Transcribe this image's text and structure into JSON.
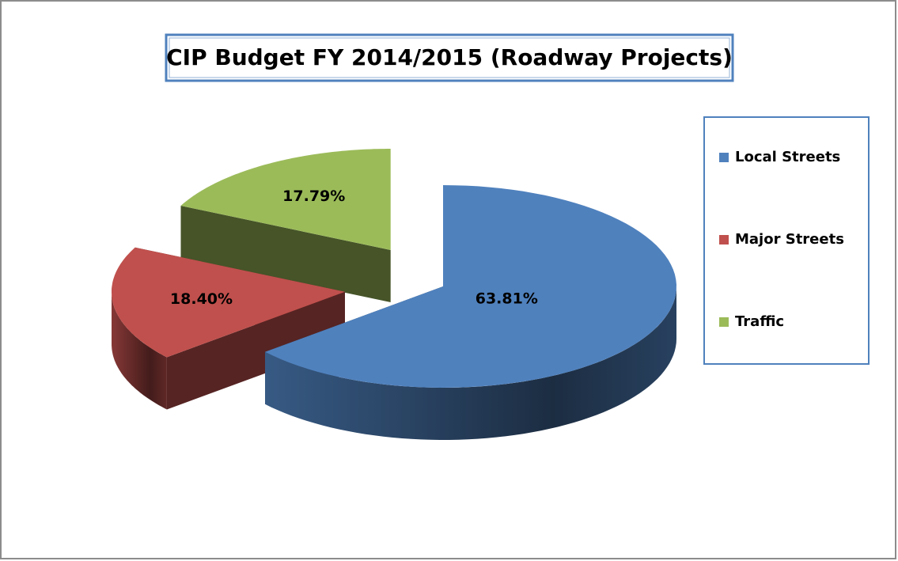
{
  "chart_data": {
    "type": "pie",
    "title": "CIP Budget FY 2014/2015 (Roadway Projects)",
    "categories": [
      "Local Streets",
      "Major Streets",
      "Traffic"
    ],
    "values": [
      63.81,
      18.4,
      17.79
    ],
    "value_labels": [
      "63.81%",
      "18.40%",
      "17.79%"
    ],
    "colors": [
      "#4f81bd",
      "#c0504d",
      "#9bbb59"
    ],
    "legend": "right"
  }
}
